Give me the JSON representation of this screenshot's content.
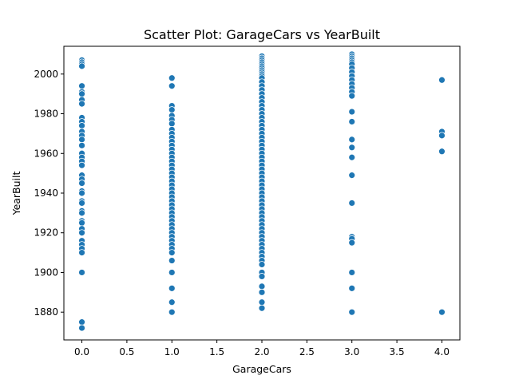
{
  "chart_data": {
    "type": "scatter",
    "title": "Scatter Plot: GarageCars vs YearBuilt",
    "xlabel": "GarageCars",
    "ylabel": "YearBuilt",
    "xlim": [
      -0.2,
      4.2
    ],
    "ylim": [
      1866,
      2014
    ],
    "x_ticks": [
      0.0,
      0.5,
      1.0,
      1.5,
      2.0,
      2.5,
      3.0,
      3.5,
      4.0
    ],
    "x_tick_labels": [
      "0.0",
      "0.5",
      "1.0",
      "1.5",
      "2.0",
      "2.5",
      "3.0",
      "3.5",
      "4.0"
    ],
    "y_ticks": [
      1880,
      1900,
      1920,
      1940,
      1960,
      1980,
      2000
    ],
    "y_tick_labels": [
      "1880",
      "1900",
      "1920",
      "1940",
      "1960",
      "1980",
      "2000"
    ],
    "grid": false,
    "legend": "none",
    "marker_color": "#1f77b4",
    "series": [
      {
        "points": [
          {
            "x": 0,
            "y": 2007
          },
          {
            "x": 0,
            "y": 2006
          },
          {
            "x": 0,
            "y": 2005
          },
          {
            "x": 0,
            "y": 2004
          },
          {
            "x": 0,
            "y": 1994
          },
          {
            "x": 0,
            "y": 1991
          },
          {
            "x": 0,
            "y": 1990
          },
          {
            "x": 0,
            "y": 1987
          },
          {
            "x": 0,
            "y": 1985
          },
          {
            "x": 0,
            "y": 1978
          },
          {
            "x": 0,
            "y": 1976
          },
          {
            "x": 0,
            "y": 1974
          },
          {
            "x": 0,
            "y": 1971
          },
          {
            "x": 0,
            "y": 1969
          },
          {
            "x": 0,
            "y": 1967
          },
          {
            "x": 0,
            "y": 1964
          },
          {
            "x": 0,
            "y": 1960
          },
          {
            "x": 0,
            "y": 1958
          },
          {
            "x": 0,
            "y": 1956
          },
          {
            "x": 0,
            "y": 1954
          },
          {
            "x": 0,
            "y": 1949
          },
          {
            "x": 0,
            "y": 1947
          },
          {
            "x": 0,
            "y": 1945
          },
          {
            "x": 0,
            "y": 1941
          },
          {
            "x": 0,
            "y": 1940
          },
          {
            "x": 0,
            "y": 1936
          },
          {
            "x": 0,
            "y": 1935
          },
          {
            "x": 0,
            "y": 1931
          },
          {
            "x": 0,
            "y": 1930
          },
          {
            "x": 0,
            "y": 1926
          },
          {
            "x": 0,
            "y": 1925
          },
          {
            "x": 0,
            "y": 1922
          },
          {
            "x": 0,
            "y": 1920
          },
          {
            "x": 0,
            "y": 1916
          },
          {
            "x": 0,
            "y": 1914
          },
          {
            "x": 0,
            "y": 1912
          },
          {
            "x": 0,
            "y": 1910
          },
          {
            "x": 0,
            "y": 1900
          },
          {
            "x": 0,
            "y": 1875
          },
          {
            "x": 0,
            "y": 1872
          },
          {
            "x": 1,
            "y": 1998
          },
          {
            "x": 1,
            "y": 1994
          },
          {
            "x": 1,
            "y": 1984
          },
          {
            "x": 1,
            "y": 1982
          },
          {
            "x": 1,
            "y": 1979
          },
          {
            "x": 1,
            "y": 1977
          },
          {
            "x": 1,
            "y": 1975
          },
          {
            "x": 1,
            "y": 1972
          },
          {
            "x": 1,
            "y": 1970
          },
          {
            "x": 1,
            "y": 1968
          },
          {
            "x": 1,
            "y": 1966
          },
          {
            "x": 1,
            "y": 1964
          },
          {
            "x": 1,
            "y": 1962
          },
          {
            "x": 1,
            "y": 1960
          },
          {
            "x": 1,
            "y": 1958
          },
          {
            "x": 1,
            "y": 1956
          },
          {
            "x": 1,
            "y": 1954
          },
          {
            "x": 1,
            "y": 1952
          },
          {
            "x": 1,
            "y": 1950
          },
          {
            "x": 1,
            "y": 1948
          },
          {
            "x": 1,
            "y": 1946
          },
          {
            "x": 1,
            "y": 1944
          },
          {
            "x": 1,
            "y": 1942
          },
          {
            "x": 1,
            "y": 1940
          },
          {
            "x": 1,
            "y": 1938
          },
          {
            "x": 1,
            "y": 1936
          },
          {
            "x": 1,
            "y": 1934
          },
          {
            "x": 1,
            "y": 1932
          },
          {
            "x": 1,
            "y": 1930
          },
          {
            "x": 1,
            "y": 1928
          },
          {
            "x": 1,
            "y": 1926
          },
          {
            "x": 1,
            "y": 1924
          },
          {
            "x": 1,
            "y": 1922
          },
          {
            "x": 1,
            "y": 1920
          },
          {
            "x": 1,
            "y": 1918
          },
          {
            "x": 1,
            "y": 1916
          },
          {
            "x": 1,
            "y": 1914
          },
          {
            "x": 1,
            "y": 1912
          },
          {
            "x": 1,
            "y": 1910
          },
          {
            "x": 1,
            "y": 1906
          },
          {
            "x": 1,
            "y": 1900
          },
          {
            "x": 1,
            "y": 1892
          },
          {
            "x": 1,
            "y": 1885
          },
          {
            "x": 1,
            "y": 1880
          },
          {
            "x": 2,
            "y": 2009
          },
          {
            "x": 2,
            "y": 2008
          },
          {
            "x": 2,
            "y": 2007
          },
          {
            "x": 2,
            "y": 2006
          },
          {
            "x": 2,
            "y": 2005
          },
          {
            "x": 2,
            "y": 2004
          },
          {
            "x": 2,
            "y": 2003
          },
          {
            "x": 2,
            "y": 2002
          },
          {
            "x": 2,
            "y": 2001
          },
          {
            "x": 2,
            "y": 2000
          },
          {
            "x": 2,
            "y": 1999
          },
          {
            "x": 2,
            "y": 1998
          },
          {
            "x": 2,
            "y": 1996
          },
          {
            "x": 2,
            "y": 1994
          },
          {
            "x": 2,
            "y": 1992
          },
          {
            "x": 2,
            "y": 1990
          },
          {
            "x": 2,
            "y": 1988
          },
          {
            "x": 2,
            "y": 1986
          },
          {
            "x": 2,
            "y": 1984
          },
          {
            "x": 2,
            "y": 1982
          },
          {
            "x": 2,
            "y": 1980
          },
          {
            "x": 2,
            "y": 1978
          },
          {
            "x": 2,
            "y": 1976
          },
          {
            "x": 2,
            "y": 1974
          },
          {
            "x": 2,
            "y": 1972
          },
          {
            "x": 2,
            "y": 1970
          },
          {
            "x": 2,
            "y": 1968
          },
          {
            "x": 2,
            "y": 1966
          },
          {
            "x": 2,
            "y": 1964
          },
          {
            "x": 2,
            "y": 1962
          },
          {
            "x": 2,
            "y": 1960
          },
          {
            "x": 2,
            "y": 1958
          },
          {
            "x": 2,
            "y": 1956
          },
          {
            "x": 2,
            "y": 1954
          },
          {
            "x": 2,
            "y": 1952
          },
          {
            "x": 2,
            "y": 1950
          },
          {
            "x": 2,
            "y": 1948
          },
          {
            "x": 2,
            "y": 1946
          },
          {
            "x": 2,
            "y": 1944
          },
          {
            "x": 2,
            "y": 1942
          },
          {
            "x": 2,
            "y": 1940
          },
          {
            "x": 2,
            "y": 1938
          },
          {
            "x": 2,
            "y": 1936
          },
          {
            "x": 2,
            "y": 1934
          },
          {
            "x": 2,
            "y": 1932
          },
          {
            "x": 2,
            "y": 1930
          },
          {
            "x": 2,
            "y": 1928
          },
          {
            "x": 2,
            "y": 1926
          },
          {
            "x": 2,
            "y": 1924
          },
          {
            "x": 2,
            "y": 1922
          },
          {
            "x": 2,
            "y": 1920
          },
          {
            "x": 2,
            "y": 1918
          },
          {
            "x": 2,
            "y": 1916
          },
          {
            "x": 2,
            "y": 1914
          },
          {
            "x": 2,
            "y": 1912
          },
          {
            "x": 2,
            "y": 1910
          },
          {
            "x": 2,
            "y": 1908
          },
          {
            "x": 2,
            "y": 1906
          },
          {
            "x": 2,
            "y": 1904
          },
          {
            "x": 2,
            "y": 1900
          },
          {
            "x": 2,
            "y": 1898
          },
          {
            "x": 2,
            "y": 1893
          },
          {
            "x": 2,
            "y": 1890
          },
          {
            "x": 2,
            "y": 1885
          },
          {
            "x": 2,
            "y": 1882
          },
          {
            "x": 3,
            "y": 2010
          },
          {
            "x": 3,
            "y": 2009
          },
          {
            "x": 3,
            "y": 2008
          },
          {
            "x": 3,
            "y": 2007
          },
          {
            "x": 3,
            "y": 2006
          },
          {
            "x": 3,
            "y": 2005
          },
          {
            "x": 3,
            "y": 2003
          },
          {
            "x": 3,
            "y": 2001
          },
          {
            "x": 3,
            "y": 1999
          },
          {
            "x": 3,
            "y": 1997
          },
          {
            "x": 3,
            "y": 1995
          },
          {
            "x": 3,
            "y": 1993
          },
          {
            "x": 3,
            "y": 1991
          },
          {
            "x": 3,
            "y": 1989
          },
          {
            "x": 3,
            "y": 1981
          },
          {
            "x": 3,
            "y": 1976
          },
          {
            "x": 3,
            "y": 1967
          },
          {
            "x": 3,
            "y": 1963
          },
          {
            "x": 3,
            "y": 1958
          },
          {
            "x": 3,
            "y": 1949
          },
          {
            "x": 3,
            "y": 1935
          },
          {
            "x": 3,
            "y": 1918
          },
          {
            "x": 3,
            "y": 1917
          },
          {
            "x": 3,
            "y": 1915
          },
          {
            "x": 3,
            "y": 1900
          },
          {
            "x": 3,
            "y": 1892
          },
          {
            "x": 3,
            "y": 1880
          },
          {
            "x": 4,
            "y": 1997
          },
          {
            "x": 4,
            "y": 1971
          },
          {
            "x": 4,
            "y": 1969
          },
          {
            "x": 4,
            "y": 1961
          },
          {
            "x": 4,
            "y": 1880
          }
        ]
      }
    ]
  }
}
